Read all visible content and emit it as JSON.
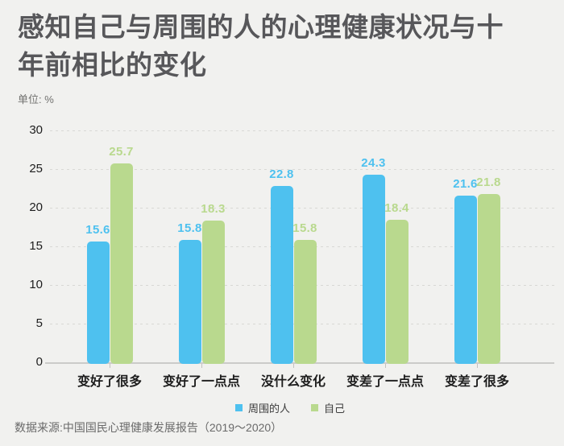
{
  "header": {
    "unit_label": "单位: %"
  },
  "source": {
    "text": "数据来源:中国国民心理健康发展报告（2019～2020）"
  },
  "chart_data": {
    "type": "bar",
    "title": "感知自己与周围的人的心理健康状况与十年前相比的变化",
    "unit": "%",
    "categories": [
      "变好了很多",
      "变好了一点点",
      "没什么变化",
      "变差了一点点",
      "变差了很多"
    ],
    "series": [
      {
        "name": "周围的人",
        "color": "#4ec1ef",
        "values": [
          15.6,
          15.8,
          22.8,
          24.3,
          21.6
        ]
      },
      {
        "name": "自己",
        "color": "#b9d98e",
        "values": [
          25.7,
          18.3,
          15.8,
          18.4,
          21.8
        ]
      }
    ],
    "ylim": [
      0,
      30
    ],
    "yticks": [
      0,
      5,
      10,
      15,
      20,
      25,
      30
    ],
    "grid": "dotted-horizontal",
    "legend_position": "bottom-center",
    "value_labels": true,
    "colors": {
      "background": "#f1f1ef",
      "title_text": "#57575a",
      "axis_text": "#1d1d1d",
      "gridline": "#d8d8d5",
      "axis_line": "#cbcbc9",
      "source_text": "#6a6a6a"
    }
  }
}
